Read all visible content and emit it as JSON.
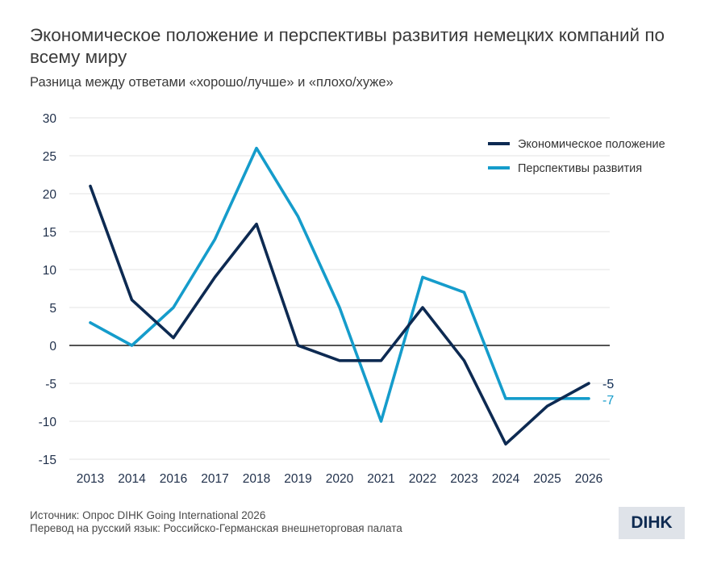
{
  "title": "Экономическое положение и перспективы развития немецких компаний по всему миру",
  "subtitle": "Разница между ответами «хорошо/лучше» и «плохо/хуже»",
  "source": {
    "line1": "Источник: Опрос DIHK Going International 2026",
    "line2": "Перевод на русский язык: Российско-Германская внешнеторговая палата"
  },
  "logo": {
    "text": "DIHK"
  },
  "chart_data": {
    "type": "line",
    "categories": [
      "2013",
      "2014",
      "2016",
      "2017",
      "2018",
      "2019",
      "2020",
      "2021",
      "2022",
      "2023",
      "2024",
      "2025",
      "2026"
    ],
    "ylim": [
      -15,
      30
    ],
    "yticks": [
      30,
      25,
      20,
      15,
      10,
      5,
      0,
      -5,
      -10,
      -15
    ],
    "grid": true,
    "legend_position": "top-right",
    "series": [
      {
        "name": "Экономическое положение",
        "color": "#0d2a52",
        "values": [
          21,
          6,
          1,
          9,
          16,
          0,
          -2,
          -2,
          5,
          -2,
          -13,
          -8,
          -5
        ],
        "end_label": "-5"
      },
      {
        "name": "Перспективы развития",
        "color": "#159ccb",
        "values": [
          3,
          0,
          5,
          14,
          26,
          17,
          5,
          -10,
          9,
          7,
          -7,
          -7,
          -7
        ],
        "end_label": "-7"
      }
    ]
  }
}
